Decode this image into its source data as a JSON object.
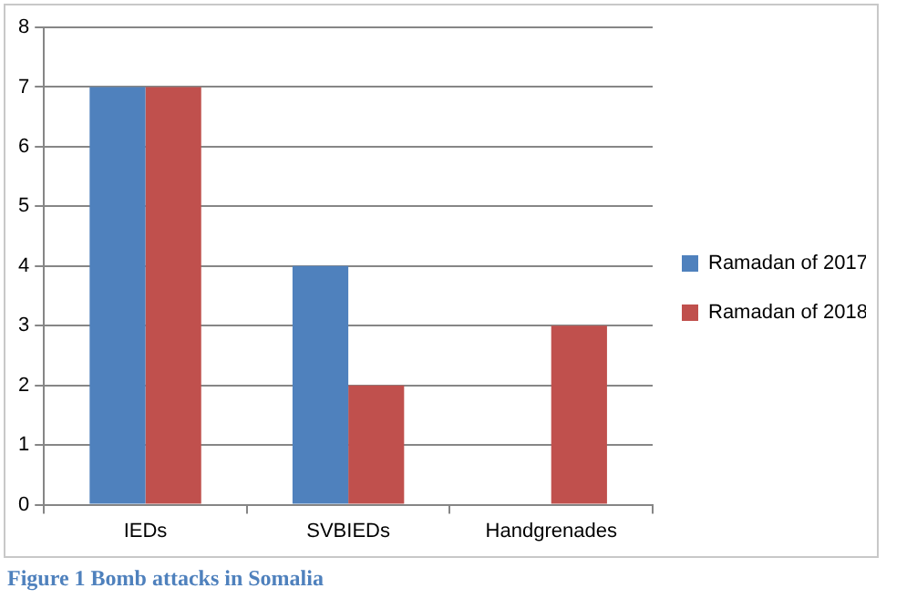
{
  "chart_data": {
    "type": "bar",
    "categories": [
      "IEDs",
      "SVBIEDs",
      "Handgrenades"
    ],
    "series": [
      {
        "name": "Ramadan of 2017",
        "color": "#4f81bd",
        "values": [
          7,
          4,
          0
        ]
      },
      {
        "name": "Ramadan of 2018",
        "color": "#c0504d",
        "values": [
          7,
          2,
          3
        ]
      }
    ],
    "ylim": [
      0,
      8
    ],
    "yticks": [
      0,
      1,
      2,
      3,
      4,
      5,
      6,
      7,
      8
    ],
    "grid": "y",
    "legend": "right",
    "annotations": [
      "Figure 1 Bomb attacks in Somalia"
    ]
  }
}
